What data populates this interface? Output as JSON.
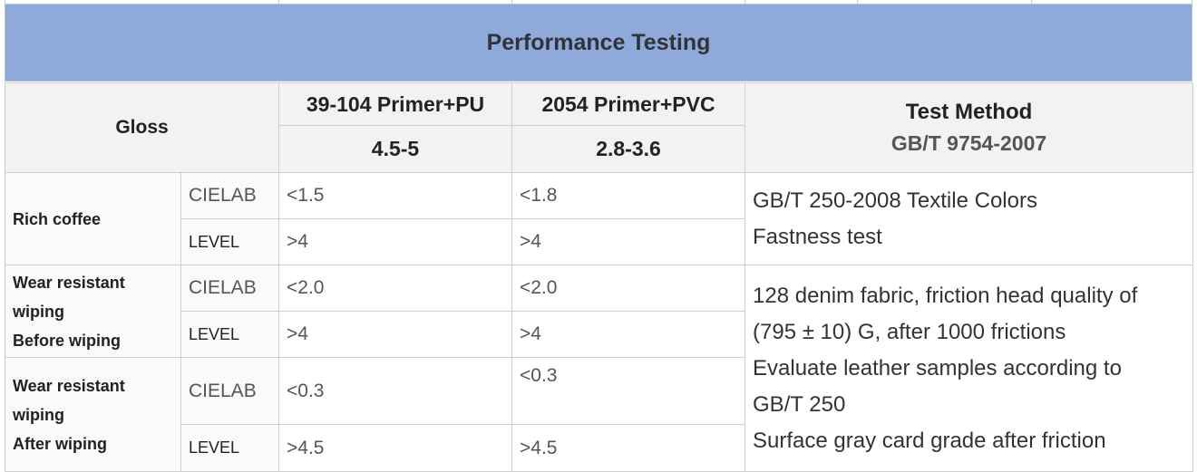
{
  "table": {
    "title": "Performance Testing",
    "gloss_label": "Gloss",
    "columns": [
      {
        "name": "39-104 Primer+PU",
        "gloss": "4.5-5"
      },
      {
        "name": "2054 Primer+PVC",
        "gloss": "2.8-3.6"
      }
    ],
    "test_method": {
      "label": "Test Method",
      "standard": "GB/T 9754-2007"
    },
    "groups": [
      {
        "category_lines": [
          "Rich coffee"
        ],
        "rows": [
          {
            "sub": "CIELAB",
            "col1": "<1.5",
            "col2": "<1.8"
          },
          {
            "sub": "LEVEL",
            "col1": ">4",
            "col2": ">4"
          }
        ],
        "method_lines": [
          "GB/T 250-2008 Textile Colors",
          "Fastness test"
        ]
      },
      {
        "category_lines": [
          "Wear resistant",
          "wiping",
          "Before wiping"
        ],
        "rows": [
          {
            "sub": "CIELAB",
            "col1": "<2.0",
            "col2": "<2.0"
          },
          {
            "sub": "LEVEL",
            "col1": ">4",
            "col2": ">4"
          }
        ],
        "method_lines": [
          "128 denim fabric, friction head quality of",
          "(795 ± 10) G, after 1000 frictions",
          "Evaluate leather samples according to",
          "GB/T 250",
          "Surface gray card grade after friction"
        ]
      },
      {
        "category_lines": [
          "Wear resistant",
          "wiping",
          "After wiping"
        ],
        "rows": [
          {
            "sub": "CIELAB",
            "col1": "<0.3",
            "col2": "<0.3"
          },
          {
            "sub": "LEVEL",
            "col1": ">4.5",
            "col2": ">4.5"
          }
        ]
      }
    ]
  }
}
